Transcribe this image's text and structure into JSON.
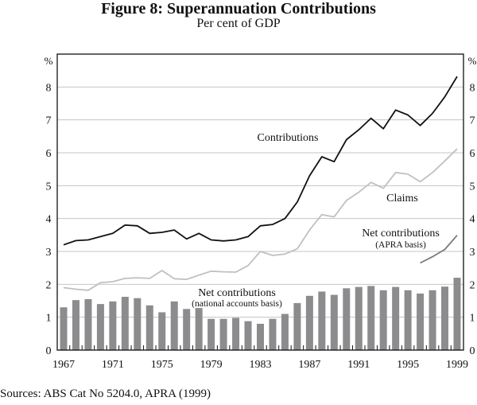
{
  "chart_data": {
    "type": "bar",
    "title": "Figure 8: Superannuation Contributions",
    "subtitle": "Per cent of GDP",
    "xlabel": "",
    "ylabel": "%",
    "ylabel_right": "%",
    "ylim": [
      0,
      9
    ],
    "yticks": [
      0,
      1,
      2,
      3,
      4,
      5,
      6,
      7,
      8
    ],
    "xlim": [
      1967,
      1999
    ],
    "xtick_labels": [
      "1967",
      "1971",
      "1975",
      "1979",
      "1983",
      "1987",
      "1991",
      "1995",
      "1999"
    ],
    "grid": true,
    "years": [
      1967,
      1968,
      1969,
      1970,
      1971,
      1972,
      1973,
      1974,
      1975,
      1976,
      1977,
      1978,
      1979,
      1980,
      1981,
      1982,
      1983,
      1984,
      1985,
      1986,
      1987,
      1988,
      1989,
      1990,
      1991,
      1992,
      1993,
      1994,
      1995,
      1996,
      1997,
      1998,
      1999
    ],
    "series": [
      {
        "name": "Net contributions (national accounts basis)",
        "kind": "bar",
        "color": "#8c8c8e",
        "label_line1": "Net contributions",
        "label_line2": "(national accounts basis)",
        "values": [
          1.3,
          1.52,
          1.55,
          1.4,
          1.48,
          1.62,
          1.58,
          1.36,
          1.15,
          1.48,
          1.25,
          1.28,
          0.95,
          0.95,
          0.98,
          0.88,
          0.8,
          0.95,
          1.1,
          1.43,
          1.65,
          1.78,
          1.68,
          1.88,
          1.92,
          1.95,
          1.82,
          1.92,
          1.82,
          1.72,
          1.82,
          1.93,
          2.2
        ]
      },
      {
        "name": "Contributions",
        "kind": "line",
        "color": "#111111",
        "label_line1": "Contributions",
        "values": [
          3.2,
          3.33,
          3.35,
          3.45,
          3.55,
          3.8,
          3.78,
          3.55,
          3.58,
          3.65,
          3.38,
          3.55,
          3.35,
          3.32,
          3.35,
          3.45,
          3.78,
          3.82,
          4.0,
          4.5,
          5.3,
          5.88,
          5.73,
          6.4,
          6.7,
          7.05,
          6.73,
          7.3,
          7.15,
          6.83,
          7.2,
          7.7,
          8.32
        ]
      },
      {
        "name": "Claims",
        "kind": "line",
        "color": "#c0c0c2",
        "label_line1": "Claims",
        "values": [
          1.9,
          1.85,
          1.82,
          2.05,
          2.08,
          2.18,
          2.2,
          2.18,
          2.42,
          2.17,
          2.15,
          2.28,
          2.4,
          2.38,
          2.37,
          2.57,
          3.0,
          2.88,
          2.92,
          3.08,
          3.65,
          4.12,
          4.05,
          4.55,
          4.8,
          5.1,
          4.92,
          5.4,
          5.35,
          5.12,
          5.4,
          5.75,
          6.12
        ]
      },
      {
        "name": "Net contributions (APRA basis)",
        "kind": "line",
        "color": "#7a7a7c",
        "label_line1": "Net contributions",
        "label_line2": "(APRA basis)",
        "x": [
          1996,
          1997,
          1998,
          1999
        ],
        "values": [
          2.65,
          2.84,
          3.06,
          3.49
        ]
      }
    ]
  },
  "footer": {
    "sources": "Sources: ABS Cat No 5204.0, APRA (1999)"
  }
}
